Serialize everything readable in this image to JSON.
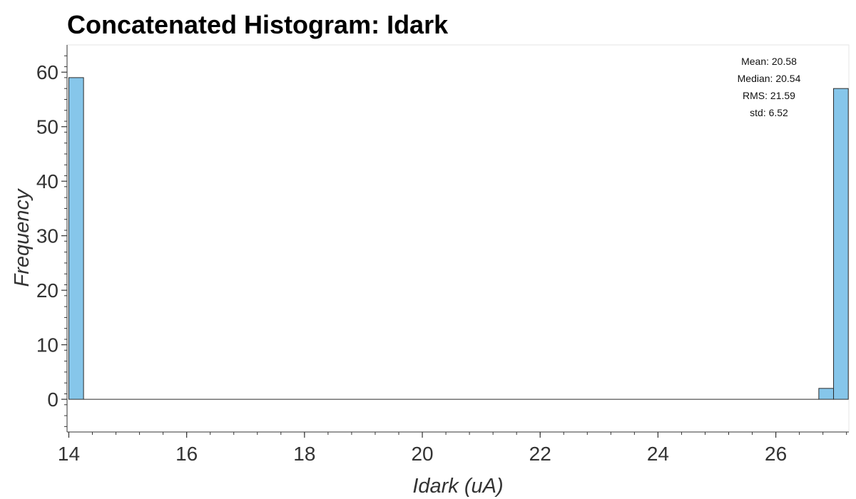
{
  "chart_data": {
    "type": "bar",
    "title": "Concatenated Histogram: Idark",
    "xlabel": "Idark (uA)",
    "ylabel": "Frequency",
    "xlim": [
      13.97,
      27.24
    ],
    "ylim": [
      -6,
      65
    ],
    "x_ticks": [
      "14",
      "16",
      "18",
      "20",
      "22",
      "24",
      "26"
    ],
    "y_ticks": [
      "0",
      "10",
      "20",
      "30",
      "40",
      "50",
      "60"
    ],
    "bins": [
      {
        "x0": 14.0,
        "x1": 14.25,
        "count": 59
      },
      {
        "x0": 14.25,
        "x1": 26.73,
        "count": 0
      },
      {
        "x0": 26.73,
        "x1": 26.98,
        "count": 2
      },
      {
        "x0": 26.98,
        "x1": 27.23,
        "count": 57
      }
    ],
    "stats": [
      "Mean: 20.58",
      "Median: 20.54",
      "RMS: 21.59",
      "std: 6.52"
    ],
    "bar_color": "#86c6ea",
    "bar_edge_color": "#2b2b2b",
    "grid": false
  }
}
